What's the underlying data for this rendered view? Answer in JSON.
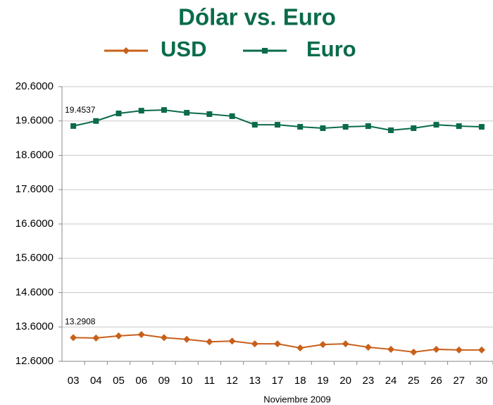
{
  "chart_data": {
    "type": "line",
    "title": "Dólar vs. Euro",
    "x_label": "Noviembre 2009",
    "categories": [
      "03",
      "04",
      "05",
      "06",
      "09",
      "10",
      "11",
      "12",
      "13",
      "17",
      "18",
      "19",
      "20",
      "23",
      "24",
      "25",
      "26",
      "27",
      "30"
    ],
    "series": [
      {
        "name": "USD",
        "color": "#c8601a",
        "marker": "diamond",
        "values": [
          13.2908,
          13.28,
          13.34,
          13.38,
          13.29,
          13.24,
          13.17,
          13.19,
          13.11,
          13.11,
          12.99,
          13.09,
          13.11,
          13.01,
          12.95,
          12.87,
          12.95,
          12.93,
          12.93
        ],
        "value_labels": [
          "13.2908",
          null,
          null,
          null,
          null,
          null,
          null,
          null,
          null,
          null,
          null,
          null,
          null,
          null,
          null,
          null,
          null,
          null,
          null
        ]
      },
      {
        "name": "Euro",
        "color": "#0a6b4a",
        "marker": "square",
        "values": [
          19.4537,
          19.6,
          19.82,
          19.9,
          19.92,
          19.84,
          19.8,
          19.74,
          19.49,
          19.49,
          19.43,
          19.39,
          19.43,
          19.45,
          19.33,
          19.39,
          19.49,
          19.45,
          19.43
        ],
        "value_labels": [
          "19.4537",
          null,
          null,
          null,
          null,
          null,
          null,
          null,
          null,
          null,
          null,
          null,
          null,
          null,
          null,
          null,
          null,
          null,
          null
        ]
      }
    ],
    "ylim": [
      12.6,
      20.6
    ],
    "yticks": [
      {
        "value": 12.6,
        "label": "12.6000"
      },
      {
        "value": 13.6,
        "label": "13.6000"
      },
      {
        "value": 14.6,
        "label": "14.6000"
      },
      {
        "value": 15.6,
        "label": "15.6000"
      },
      {
        "value": 16.6,
        "label": "16.6000"
      },
      {
        "value": 17.6,
        "label": "17.6000"
      },
      {
        "value": 18.6,
        "label": "18.6000"
      },
      {
        "value": 19.6,
        "label": "19.6000"
      },
      {
        "value": 20.6,
        "label": "20.6000"
      }
    ],
    "grid": true
  }
}
